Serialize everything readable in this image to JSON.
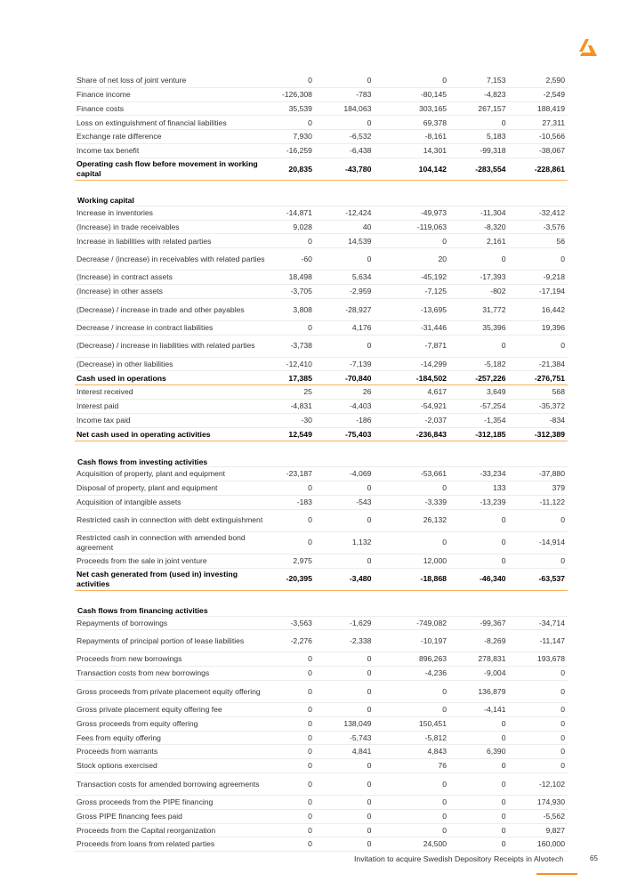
{
  "brand": {
    "logo_color": "#f5931e",
    "accent_line": "#f7b15a"
  },
  "sections": [
    {
      "heading": "",
      "rows": [
        {
          "label": "Share of net loss of joint venture",
          "values": [
            "0",
            "0",
            "0",
            "7,153",
            "2,590"
          ]
        },
        {
          "label": "Finance income",
          "values": [
            "-126,308",
            "-783",
            "-80,145",
            "-4,823",
            "-2,549"
          ]
        },
        {
          "label": "Finance costs",
          "values": [
            "35,539",
            "184,063",
            "303,165",
            "267,157",
            "188,419"
          ]
        },
        {
          "label": "Loss on extinguishment of financial liabilities",
          "values": [
            "0",
            "0",
            "69,378",
            "0",
            "27,311"
          ]
        },
        {
          "label": "Exchange rate difference",
          "values": [
            "7,930",
            "-6,532",
            "-8,161",
            "5,183",
            "-10,566"
          ]
        },
        {
          "label": "Income tax benefit",
          "values": [
            "-16,259",
            "-6,438",
            "14,301",
            "-99,318",
            "-38,067"
          ]
        },
        {
          "label": "Operating cash flow before movement in working capital",
          "values": [
            "20,835",
            "-43,780",
            "104,142",
            "-283,554",
            "-228,861"
          ],
          "total": true,
          "double": true
        }
      ]
    },
    {
      "heading": "Working capital",
      "rows": [
        {
          "label": "Increase in inventories",
          "values": [
            "-14,871",
            "-12,424",
            "-49,973",
            "-11,304",
            "-32,412"
          ]
        },
        {
          "label": "(Increase) in trade receivables",
          "values": [
            "9,028",
            "40",
            "-119,063",
            "-8,320",
            "-3,576"
          ]
        },
        {
          "label": "Increase in liabilities with related parties",
          "values": [
            "0",
            "14,539",
            "0",
            "2,161",
            "56"
          ]
        },
        {
          "label": "Decrease / (increase) in receivables with related parties",
          "values": [
            "-60",
            "0",
            "20",
            "0",
            "0"
          ],
          "double": true
        },
        {
          "label": "(Increase) in contract assets",
          "values": [
            "18,498",
            "5,634",
            "-45,192",
            "-17,393",
            "-9,218"
          ]
        },
        {
          "label": "(Increase) in other assets",
          "values": [
            "-3,705",
            "-2,959",
            "-7,125",
            "-802",
            "-17,194"
          ]
        },
        {
          "label": "(Decrease) / increase in trade and other payables",
          "values": [
            "3,808",
            "-28,927",
            "-13,695",
            "31,772",
            "16,442"
          ],
          "double": true
        },
        {
          "label": "Decrease / increase in contract liabilities",
          "values": [
            "0",
            "4,176",
            "-31,446",
            "35,396",
            "19,396"
          ]
        },
        {
          "label": "(Decrease) / increase in liabilities with related parties",
          "values": [
            "-3,738",
            "0",
            "-7,871",
            "0",
            "0"
          ],
          "double": true
        },
        {
          "label": "(Decrease) in other liabilities",
          "values": [
            "-12,410",
            "-7,139",
            "-14,299",
            "-5,182",
            "-21,384"
          ]
        },
        {
          "label": "Cash used in operations",
          "values": [
            "17,385",
            "-70,840",
            "-184,502",
            "-257,226",
            "-276,751"
          ],
          "total": true
        },
        {
          "label": "Interest received",
          "values": [
            "25",
            "26",
            "4,617",
            "3,649",
            "568"
          ]
        },
        {
          "label": "Interest paid",
          "values": [
            "-4,831",
            "-4,403",
            "-54,921",
            "-57,254",
            "-35,372"
          ]
        },
        {
          "label": "Income tax paid",
          "values": [
            "-30",
            "-186",
            "-2,037",
            "-1,354",
            "-834"
          ]
        },
        {
          "label": "Net cash used in operating activities",
          "values": [
            "12,549",
            "-75,403",
            "-236,843",
            "-312,185",
            "-312,389"
          ],
          "total": true
        }
      ]
    },
    {
      "heading": "Cash flows from investing activities",
      "rows": [
        {
          "label": "Acquisition of property, plant and equipment",
          "values": [
            "-23,187",
            "-4,069",
            "-53,661",
            "-33,234",
            "-37,880"
          ]
        },
        {
          "label": "Disposal of property, plant and equipment",
          "values": [
            "0",
            "0",
            "0",
            "133",
            "379"
          ]
        },
        {
          "label": "Acquisition of intangible assets",
          "values": [
            "-183",
            "-543",
            "-3,339",
            "-13,239",
            "-11,122"
          ]
        },
        {
          "label": "Restricted cash in connection with debt extinguishment",
          "values": [
            "0",
            "0",
            "26,132",
            "0",
            "0"
          ],
          "double": true
        },
        {
          "label": "Restricted cash in connection with amended bond agreement",
          "values": [
            "0",
            "1,132",
            "0",
            "0",
            "-14,914"
          ],
          "double": true
        },
        {
          "label": "Proceeds from the sale in joint venture",
          "values": [
            "2,975",
            "0",
            "12,000",
            "0",
            "0"
          ]
        },
        {
          "label": "Net cash generated from (used in) investing activities",
          "values": [
            "-20,395",
            "-3,480",
            "-18,868",
            "-46,340",
            "-63,537"
          ],
          "total": true,
          "double": true
        }
      ]
    },
    {
      "heading": "Cash flows from financing activities",
      "rows": [
        {
          "label": "Repayments of borrowings",
          "values": [
            "-3,563",
            "-1,629",
            "-749,082",
            "-99,367",
            "-34,714"
          ]
        },
        {
          "label": "Repayments of principal portion of lease liabilities",
          "values": [
            "-2,276",
            "-2,338",
            "-10,197",
            "-8,269",
            "-11,147"
          ],
          "double": true
        },
        {
          "label": "Proceeds from new borrowings",
          "values": [
            "0",
            "0",
            "896,263",
            "278,831",
            "193,678"
          ]
        },
        {
          "label": "Transaction costs from new borrowings",
          "values": [
            "0",
            "0",
            "-4,236",
            "-9,004",
            "0"
          ]
        },
        {
          "label": "Gross proceeds from private placement equity offering",
          "values": [
            "0",
            "0",
            "0",
            "136,879",
            "0"
          ],
          "double": true
        },
        {
          "label": "Gross private placement equity offering fee",
          "values": [
            "0",
            "0",
            "0",
            "-4,141",
            "0"
          ]
        },
        {
          "label": "Gross proceeds from equity offering",
          "values": [
            "0",
            "138,049",
            "150,451",
            "0",
            "0"
          ]
        },
        {
          "label": "Fees from equity offering",
          "values": [
            "0",
            "-5,743",
            "-5,812",
            "0",
            "0"
          ]
        },
        {
          "label": "Proceeds from warrants",
          "values": [
            "0",
            "4,841",
            "4,843",
            "6,390",
            "0"
          ]
        },
        {
          "label": "Stock options exercised",
          "values": [
            "0",
            "0",
            "76",
            "0",
            "0"
          ]
        },
        {
          "label": "Transaction costs for amended borrowing agreements",
          "values": [
            "0",
            "0",
            "0",
            "0",
            "-12,102"
          ],
          "double": true
        },
        {
          "label": "Gross proceeds from the PIPE financing",
          "values": [
            "0",
            "0",
            "0",
            "0",
            "174,930"
          ]
        },
        {
          "label": "Gross PIPE financing fees paid",
          "values": [
            "0",
            "0",
            "0",
            "0",
            "-5,562"
          ]
        },
        {
          "label": "Proceeds from the Capital reorganization",
          "values": [
            "0",
            "0",
            "0",
            "0",
            "9,827"
          ]
        },
        {
          "label": "Proceeds from loans from related parties",
          "values": [
            "0",
            "0",
            "24,500",
            "0",
            "160,000"
          ]
        }
      ]
    }
  ],
  "footer": {
    "text": "Invitation to acquire Swedish Depository Receipts in Alvotech",
    "page": "65"
  }
}
